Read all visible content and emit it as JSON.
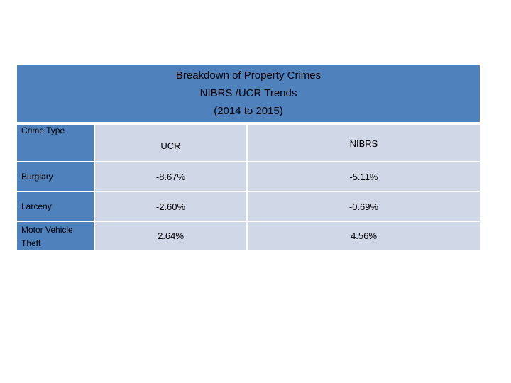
{
  "table": {
    "title_lines": [
      "Breakdown of Property Crimes",
      "NIBRS /UCR Trends",
      "(2014 to  2015)"
    ],
    "corner_label": "Crime Type",
    "columns": [
      "UCR",
      "NIBRS"
    ],
    "rows": [
      {
        "label": "Burglary",
        "ucr": "-8.67%",
        "nibrs": "-5.11%"
      },
      {
        "label": "Larceny",
        "ucr": "-2.60%",
        "nibrs": "-0.69%"
      },
      {
        "label": "Motor Vehicle Theft",
        "ucr": "2.64%",
        "nibrs": "4.56%"
      }
    ],
    "colors": {
      "header": "#4f81bd",
      "cell": "#d0d8e8"
    }
  }
}
